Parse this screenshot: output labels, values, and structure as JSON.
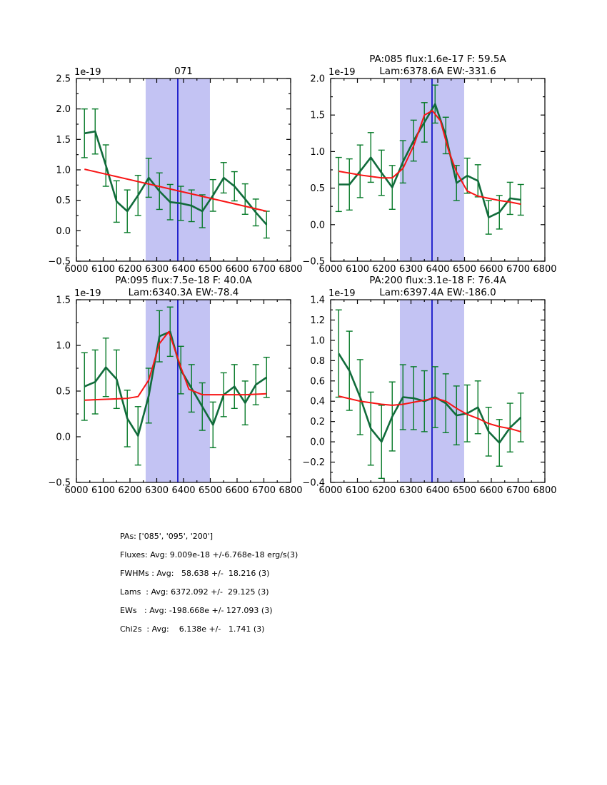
{
  "figure": {
    "background": "#ffffff",
    "colors": {
      "data_line": "#116b3b",
      "error_bar": "#067a28",
      "fit_line": "#f81414",
      "band_fill": "#c3c3f3",
      "vline": "#1515c8",
      "axis": "#000000"
    }
  },
  "chart_data": [
    {
      "id": "combined-071",
      "type": "errorbar-line",
      "title_lines": [
        "071"
      ],
      "offset_text": "1e-19",
      "xlim": [
        6000,
        6800
      ],
      "ylim": [
        -0.5,
        2.5
      ],
      "xticks": [
        6000,
        6100,
        6200,
        6300,
        6400,
        6500,
        6600,
        6700,
        6800
      ],
      "yticks": [
        -0.5,
        0.0,
        0.5,
        1.0,
        1.5,
        2.0,
        2.5
      ],
      "band": [
        6258.6,
        6498.6
      ],
      "vline": 6378.6,
      "x": [
        6030,
        6070,
        6110,
        6150,
        6190,
        6230,
        6270,
        6310,
        6350,
        6390,
        6430,
        6470,
        6510,
        6550,
        6590,
        6630,
        6670,
        6710
      ],
      "y": [
        1.6,
        1.63,
        1.07,
        0.48,
        0.32,
        0.58,
        0.87,
        0.65,
        0.47,
        0.45,
        0.41,
        0.32,
        0.58,
        0.87,
        0.73,
        0.52,
        0.3,
        0.1
      ],
      "yerr": [
        0.4,
        0.37,
        0.34,
        0.34,
        0.35,
        0.33,
        0.32,
        0.3,
        0.29,
        0.28,
        0.26,
        0.27,
        0.26,
        0.25,
        0.24,
        0.25,
        0.22,
        0.22
      ],
      "fit": {
        "x": [
          6030,
          6710
        ],
        "y": [
          1.01,
          0.32
        ]
      }
    },
    {
      "id": "pa-085",
      "type": "errorbar-line",
      "title_lines": [
        "PA:085 flux:1.6e-17 F: 59.5A",
        "Lam:6378.6A EW:-331.6"
      ],
      "offset_text": "1e-19",
      "xlim": [
        6000,
        6800
      ],
      "ylim": [
        -0.5,
        2.0
      ],
      "xticks": [
        6000,
        6100,
        6200,
        6300,
        6400,
        6500,
        6600,
        6700,
        6800
      ],
      "yticks": [
        -0.5,
        0.0,
        0.5,
        1.0,
        1.5,
        2.0
      ],
      "band": [
        6258.6,
        6498.6
      ],
      "vline": 6378.6,
      "x": [
        6030,
        6070,
        6110,
        6150,
        6190,
        6230,
        6270,
        6310,
        6350,
        6390,
        6430,
        6470,
        6510,
        6550,
        6590,
        6630,
        6670,
        6710
      ],
      "y": [
        0.55,
        0.55,
        0.73,
        0.92,
        0.71,
        0.51,
        0.86,
        1.15,
        1.4,
        1.65,
        1.22,
        0.57,
        0.67,
        0.6,
        0.1,
        0.17,
        0.36,
        0.34
      ],
      "yerr": [
        0.37,
        0.35,
        0.36,
        0.34,
        0.31,
        0.3,
        0.29,
        0.28,
        0.27,
        0.26,
        0.25,
        0.24,
        0.24,
        0.22,
        0.23,
        0.23,
        0.22,
        0.21
      ],
      "fit": {
        "x": [
          6030,
          6110,
          6190,
          6230,
          6270,
          6310,
          6350,
          6380,
          6410,
          6440,
          6470,
          6510,
          6550,
          6590,
          6630,
          6670,
          6710
        ],
        "y": [
          0.73,
          0.68,
          0.64,
          0.64,
          0.77,
          1.08,
          1.5,
          1.56,
          1.42,
          1.02,
          0.72,
          0.46,
          0.39,
          0.36,
          0.33,
          0.31,
          0.28
        ]
      }
    },
    {
      "id": "pa-095",
      "type": "errorbar-line",
      "title_lines": [
        "PA:095 flux:7.5e-18 F: 40.0A",
        "Lam:6340.3A EW:-78.4"
      ],
      "offset_text": "1e-19",
      "xlim": [
        6000,
        6800
      ],
      "ylim": [
        -0.5,
        1.5
      ],
      "xticks": [
        6000,
        6100,
        6200,
        6300,
        6400,
        6500,
        6600,
        6700,
        6800
      ],
      "yticks": [
        -0.5,
        0.0,
        0.5,
        1.0,
        1.5
      ],
      "band": [
        6258.6,
        6498.6
      ],
      "vline": 6378.6,
      "x": [
        6030,
        6070,
        6110,
        6150,
        6190,
        6230,
        6270,
        6310,
        6350,
        6390,
        6430,
        6470,
        6510,
        6550,
        6590,
        6630,
        6670,
        6710
      ],
      "y": [
        0.55,
        0.6,
        0.76,
        0.63,
        0.2,
        0.01,
        0.45,
        1.1,
        1.15,
        0.73,
        0.53,
        0.33,
        0.13,
        0.46,
        0.55,
        0.37,
        0.57,
        0.65
      ],
      "yerr": [
        0.37,
        0.35,
        0.32,
        0.32,
        0.31,
        0.32,
        0.3,
        0.28,
        0.27,
        0.26,
        0.26,
        0.26,
        0.25,
        0.24,
        0.24,
        0.24,
        0.22,
        0.22
      ],
      "fit": {
        "x": [
          6030,
          6110,
          6190,
          6230,
          6270,
          6310,
          6345,
          6390,
          6420,
          6470,
          6550,
          6630,
          6710
        ],
        "y": [
          0.4,
          0.41,
          0.42,
          0.44,
          0.62,
          1.02,
          1.15,
          0.76,
          0.52,
          0.46,
          0.46,
          0.46,
          0.47
        ]
      }
    },
    {
      "id": "pa-200",
      "type": "errorbar-line",
      "title_lines": [
        "PA:200 flux:3.1e-18 F: 76.4A",
        "Lam:6397.4A EW:-186.0"
      ],
      "offset_text": "1e-19",
      "xlim": [
        6000,
        6800
      ],
      "ylim": [
        -0.4,
        1.4
      ],
      "xticks": [
        6000,
        6100,
        6200,
        6300,
        6400,
        6500,
        6600,
        6700,
        6800
      ],
      "yticks": [
        -0.4,
        -0.2,
        0.0,
        0.2,
        0.4,
        0.6,
        0.8,
        1.0,
        1.2,
        1.4
      ],
      "band": [
        6258.6,
        6498.6
      ],
      "vline": 6378.6,
      "x": [
        6030,
        6070,
        6110,
        6150,
        6190,
        6230,
        6270,
        6310,
        6350,
        6390,
        6430,
        6470,
        6510,
        6550,
        6590,
        6630,
        6670,
        6710
      ],
      "y": [
        0.87,
        0.7,
        0.44,
        0.13,
        0.0,
        0.25,
        0.44,
        0.43,
        0.4,
        0.44,
        0.38,
        0.26,
        0.28,
        0.34,
        0.1,
        -0.01,
        0.14,
        0.24
      ],
      "yerr": [
        0.43,
        0.39,
        0.37,
        0.36,
        0.36,
        0.34,
        0.32,
        0.31,
        0.3,
        0.3,
        0.29,
        0.29,
        0.28,
        0.26,
        0.24,
        0.23,
        0.24,
        0.24
      ],
      "fit": {
        "x": [
          6030,
          6110,
          6190,
          6230,
          6270,
          6310,
          6350,
          6390,
          6430,
          6470,
          6510,
          6550,
          6590,
          6630,
          6670,
          6710
        ],
        "y": [
          0.45,
          0.4,
          0.37,
          0.36,
          0.37,
          0.39,
          0.41,
          0.43,
          0.4,
          0.33,
          0.27,
          0.23,
          0.18,
          0.15,
          0.13,
          0.1
        ]
      }
    }
  ],
  "summary": {
    "lines": [
      "PAs: ['085', '095', '200']",
      "Fluxes: Avg: 9.009e-18 +/-6.768e-18 erg/s(3)",
      "FWHMs : Avg:   58.638 +/-  18.216 (3)",
      "Lams  : Avg: 6372.092 +/-  29.125 (3)",
      "EWs   : Avg: -198.668e +/- 127.093 (3)",
      "Chi2s  : Avg:    6.138e +/-   1.741 (3)"
    ]
  }
}
